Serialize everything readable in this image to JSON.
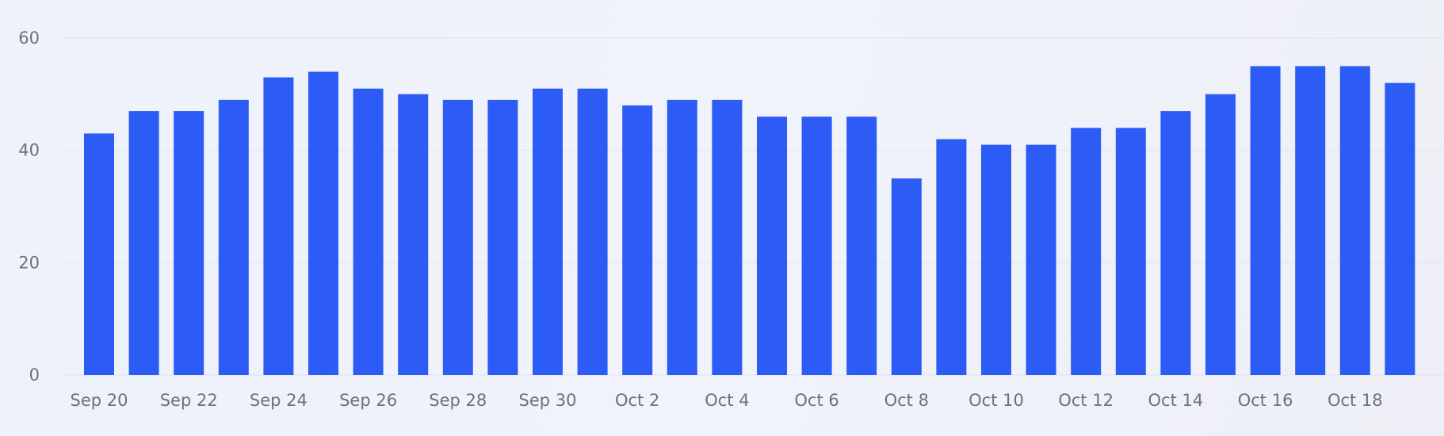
{
  "chart_data": {
    "type": "bar",
    "categories": [
      "Sep 20",
      "Sep 21",
      "Sep 22",
      "Sep 23",
      "Sep 24",
      "Sep 25",
      "Sep 26",
      "Sep 27",
      "Sep 28",
      "Sep 29",
      "Sep 30",
      "Oct 1",
      "Oct 2",
      "Oct 3",
      "Oct 4",
      "Oct 5",
      "Oct 6",
      "Oct 7",
      "Oct 8",
      "Oct 9",
      "Oct 10",
      "Oct 11",
      "Oct 12",
      "Oct 13",
      "Oct 14",
      "Oct 15",
      "Oct 16",
      "Oct 17",
      "Oct 18",
      "Oct 19"
    ],
    "x_tick_labels": [
      "Sep 20",
      "Sep 22",
      "Sep 24",
      "Sep 26",
      "Sep 28",
      "Sep 30",
      "Oct 2",
      "Oct 4",
      "Oct 6",
      "Oct 8",
      "Oct 10",
      "Oct 12",
      "Oct 14",
      "Oct 16",
      "Oct 18"
    ],
    "values": [
      43,
      47,
      47,
      49,
      53,
      54,
      51,
      50,
      49,
      49,
      51,
      51,
      48,
      49,
      49,
      46,
      46,
      46,
      35,
      42,
      41,
      41,
      44,
      44,
      47,
      50,
      55,
      55,
      55,
      52
    ],
    "ylim": [
      0,
      60
    ],
    "y_ticks": [
      0,
      20,
      40,
      60
    ],
    "grid": true,
    "bar_color": "#2c5bf6",
    "title": "",
    "xlabel": "",
    "ylabel": ""
  }
}
